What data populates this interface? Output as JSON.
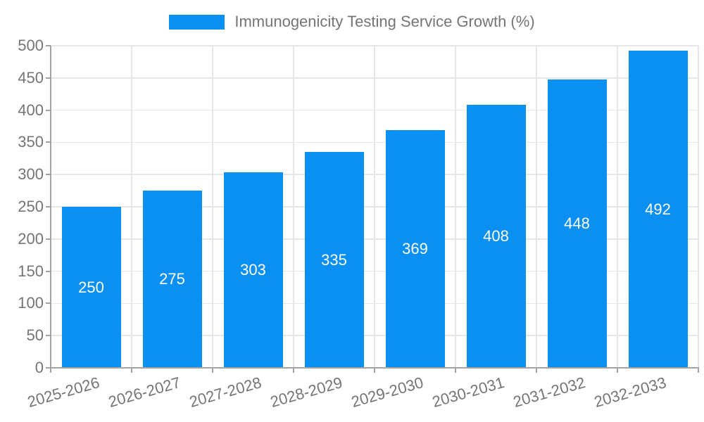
{
  "chart_data": {
    "type": "bar",
    "title": "Immunogenicity Testing Service Growth (%)",
    "categories": [
      "2025-2026",
      "2026-2027",
      "2027-2028",
      "2028-2029",
      "2029-2030",
      "2030-2031",
      "2031-2032",
      "2032-2033"
    ],
    "values": [
      250,
      275,
      303,
      335,
      369,
      408,
      448,
      492
    ],
    "bar_value_labels": [
      "250",
      "275",
      "303",
      "335",
      "369",
      "408",
      "448",
      "492"
    ],
    "xlabel": "",
    "ylabel": "",
    "ylim": [
      0,
      500
    ],
    "yticks": [
      0,
      50,
      100,
      150,
      200,
      250,
      300,
      350,
      400,
      450,
      500
    ],
    "grid": true,
    "legend_position": "top-center"
  },
  "colors": {
    "bar": "#0a8ff2",
    "grid": "#e6e6e6",
    "axis": "#a3a3a3",
    "tick_text": "#757575",
    "bar_value_text": "#ffffff",
    "background": "#ffffff"
  }
}
